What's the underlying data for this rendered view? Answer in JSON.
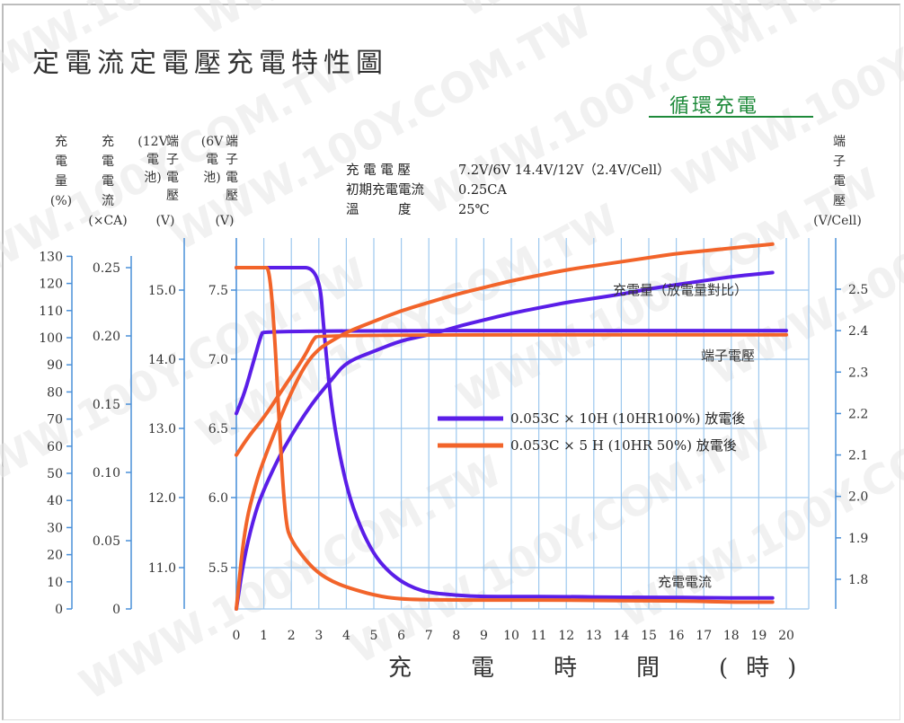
{
  "title": "定電流定電壓充電特性圖",
  "subtitle": "循環充電",
  "watermark": "WWW.100Y.COM.TW",
  "conditions": [
    {
      "label": "充 電 電 壓",
      "value": "7.2V/6V 14.4V/12V（2.4V/Cell）"
    },
    {
      "label": "初期充電電流",
      "value": "0.25CA"
    },
    {
      "label": "溫　　　度",
      "value": "25℃"
    }
  ],
  "axes": {
    "capacity": {
      "header": [
        "充",
        "電",
        "量",
        "(%)"
      ],
      "ticks": [
        "130",
        "120",
        "110",
        "100",
        "90",
        "80",
        "70",
        "60",
        "50",
        "40",
        "30",
        "20",
        "10",
        "0"
      ],
      "range": [
        0,
        130
      ]
    },
    "current": {
      "header": [
        "充",
        "電",
        "電",
        "流",
        "(×CA)"
      ],
      "ticks": [
        "0.25",
        "0.20",
        "0.15",
        "0.10",
        "0.05",
        "0"
      ],
      "range": [
        0,
        0.25
      ]
    },
    "volt12": {
      "header_a": [
        "端",
        "子",
        "電",
        "壓"
      ],
      "header_b": [
        "(12V",
        "電",
        "池)"
      ],
      "unit": "(V)",
      "ticks": [
        "15.0",
        "14.0",
        "13.0",
        "12.0",
        "11.0"
      ]
    },
    "volt6": {
      "header_a": [
        "端",
        "子",
        "電",
        "壓"
      ],
      "header_b": [
        "(6V",
        "電",
        "池)"
      ],
      "unit": "(V)",
      "ticks": [
        "7.5",
        "7.0",
        "6.5",
        "6.0",
        "5.5"
      ]
    },
    "cell": {
      "header": [
        "端",
        "子",
        "電",
        "壓"
      ],
      "unit": "(V/Cell)",
      "ticks": [
        "2.5",
        "2.4",
        "2.3",
        "2.2",
        "2.1",
        "2.0",
        "1.9",
        "1.8"
      ]
    },
    "x": {
      "label": "充　電　時　間　(時)",
      "ticks": [
        "0",
        "1",
        "2",
        "3",
        "4",
        "5",
        "6",
        "7",
        "8",
        "9",
        "10",
        "11",
        "12",
        "13",
        "14",
        "15",
        "16",
        "17",
        "18",
        "19",
        "20"
      ],
      "range": [
        0,
        20
      ]
    }
  },
  "curve_labels": {
    "capacity": "充電量（放電量對比）",
    "voltage": "端子電壓",
    "current": "充電電流"
  },
  "legend": [
    {
      "text": "0.053C × 10H (10HR100%) 放電後",
      "color": "#5a1ee8"
    },
    {
      "text": "0.053C × 5 H (10HR 50%) 放電後",
      "color": "#f2642a"
    }
  ],
  "chart_data": {
    "type": "line",
    "title": "定電流定電壓充電特性圖",
    "xlabel": "充電時間 (時)",
    "xlim": [
      0,
      20
    ],
    "cell_voltage_ylim": [
      1.75,
      2.55
    ],
    "capacity_ylim": [
      0,
      130
    ],
    "current_ylim": [
      0,
      0.25
    ],
    "grid": true,
    "series": [
      {
        "name": "0.053C × 10H (10HR100%) 放電後",
        "quantity": "terminal_voltage_v_per_cell",
        "color": "#5a1ee8",
        "x": [
          0,
          0.3,
          0.6,
          0.9,
          1.0,
          20
        ],
        "y": [
          2.2,
          2.25,
          2.32,
          2.39,
          2.4,
          2.4
        ]
      },
      {
        "name": "0.053C × 10H (10HR100%) 放電後",
        "quantity": "charge_current_ca",
        "color": "#5a1ee8",
        "x": [
          0,
          1,
          2,
          3,
          3.2,
          3.5,
          4,
          4.5,
          5,
          5.5,
          6,
          6.5,
          7,
          8,
          9,
          10,
          12,
          14,
          16,
          18,
          19.5
        ],
        "y": [
          0.25,
          0.25,
          0.25,
          0.25,
          0.2,
          0.14,
          0.089,
          0.06,
          0.04,
          0.028,
          0.02,
          0.015,
          0.012,
          0.01,
          0.009,
          0.009,
          0.009,
          0.0085,
          0.0085,
          0.008,
          0.008
        ]
      },
      {
        "name": "0.053C × 10H (10HR100%) 放電後",
        "quantity": "charge_capacity_pct",
        "color": "#5a1ee8",
        "x": [
          0,
          0.3,
          0.7,
          1,
          1.5,
          2,
          2.5,
          3,
          3.5,
          4,
          5,
          6,
          7,
          8,
          9,
          10,
          11,
          12,
          13,
          14,
          15,
          16,
          17,
          18,
          19,
          19.5
        ],
        "y": [
          0,
          20,
          36,
          44,
          55,
          64,
          72,
          79,
          85,
          91,
          95,
          99,
          101,
          104,
          106.5,
          109,
          111,
          113,
          114.5,
          116,
          118,
          119.5,
          121,
          122.5,
          123.5,
          124
        ]
      },
      {
        "name": "0.053C × 5 H (10HR 50%) 放電後",
        "quantity": "terminal_voltage_v_per_cell",
        "color": "#f2642a",
        "x": [
          0,
          0.5,
          1,
          1.5,
          2,
          2.5,
          2.8,
          3,
          20
        ],
        "y": [
          2.1,
          2.15,
          2.19,
          2.24,
          2.29,
          2.34,
          2.38,
          2.39,
          2.39
        ]
      },
      {
        "name": "0.053C × 5 H (10HR 50%) 放電後",
        "quantity": "charge_current_ca",
        "color": "#f2642a",
        "x": [
          0,
          0.5,
          1,
          1.2,
          1.4,
          1.6,
          1.8,
          2,
          2.5,
          3,
          3.5,
          4,
          5,
          6,
          8,
          10,
          12,
          14,
          16,
          18,
          19.5
        ],
        "y": [
          0.25,
          0.25,
          0.25,
          0.25,
          0.2,
          0.12,
          0.062,
          0.05,
          0.036,
          0.026,
          0.02,
          0.016,
          0.01,
          0.007,
          0.0065,
          0.0065,
          0.0065,
          0.006,
          0.006,
          0.005,
          0.005
        ]
      },
      {
        "name": "0.053C × 5 H (10HR 50%) 放電後",
        "quantity": "charge_capacity_pct",
        "color": "#f2642a",
        "x": [
          0,
          0.3,
          0.7,
          1,
          1.5,
          2,
          2.5,
          3,
          3.5,
          4,
          5,
          6,
          7,
          8,
          9,
          10,
          11,
          12,
          13,
          14,
          15,
          16,
          17,
          18,
          19,
          19.5
        ],
        "y": [
          0,
          30,
          46,
          55,
          68,
          80,
          90,
          96,
          99,
          102,
          106,
          110,
          113,
          116,
          118.5,
          121,
          123,
          125,
          126.5,
          128,
          129.5,
          131,
          132,
          133,
          134,
          134.5
        ]
      }
    ]
  }
}
